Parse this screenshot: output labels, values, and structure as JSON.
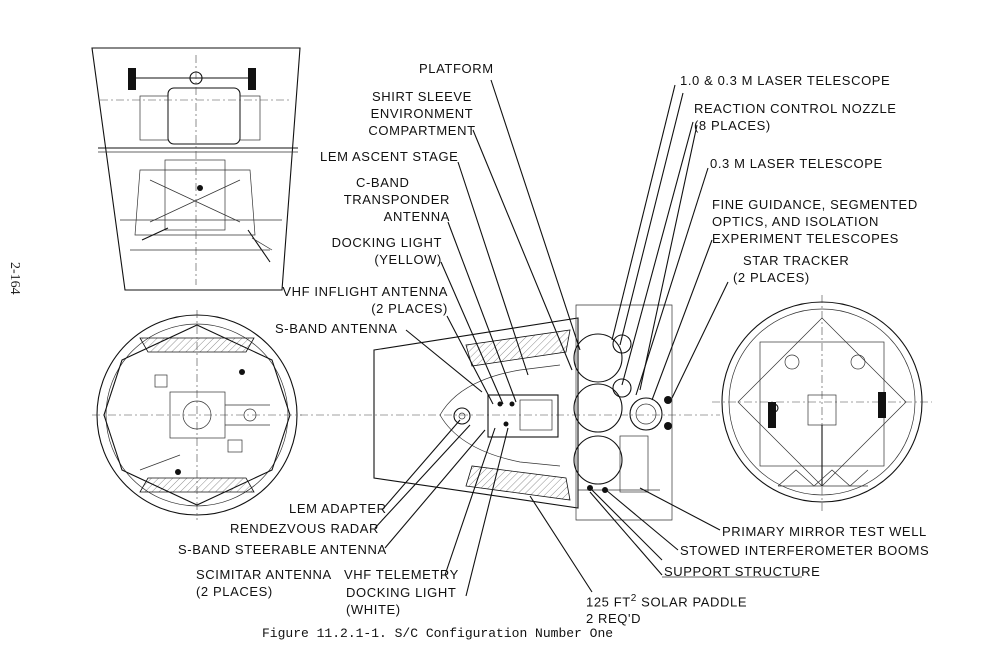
{
  "page_number": "2-164",
  "caption": "Figure 11.2.1-1.  S/C Configuration Number One",
  "labels": {
    "platform": "PLATFORM",
    "shirt_sleeve": [
      "SHIRT SLEEVE",
      "ENVIRONMENT",
      "COMPARTMENT"
    ],
    "lem_ascent_stage": "LEM ASCENT STAGE",
    "c_band": [
      "C-BAND",
      "TRANSPONDER",
      "ANTENNA"
    ],
    "docking_light_yellow": [
      "DOCKING LIGHT",
      "(YELLOW)"
    ],
    "vhf_inflight": [
      "VHF INFLIGHT ANTENNA",
      "(2 PLACES)"
    ],
    "s_band_antenna": "S-BAND ANTENNA",
    "laser_telescope_large": "1.0 & 0.3 M LASER TELESCOPE",
    "reaction_control": [
      "REACTION CONTROL NOZZLE",
      "(8 PLACES)"
    ],
    "laser_telescope_small": "0.3 M LASER TELESCOPE",
    "fine_guidance": [
      "FINE GUIDANCE, SEGMENTED",
      "OPTICS, AND ISOLATION",
      "EXPERIMENT TELESCOPES"
    ],
    "star_tracker": [
      "STAR TRACKER",
      "(2 PLACES)"
    ],
    "lem_adapter": "LEM ADAPTER",
    "rendezvous_radar": "RENDEZVOUS RADAR",
    "s_band_steerable": "S-BAND STEERABLE ANTENNA",
    "scimitar": [
      "SCIMITAR ANTENNA",
      "(2 PLACES)"
    ],
    "vhf_telemetry": "VHF TELEMETRY",
    "docking_light_white": [
      "DOCKING LIGHT",
      "(WHITE)"
    ],
    "solar_paddle_area": "125 FT",
    "solar_paddle_exp": "2",
    "solar_paddle_rest": " SOLAR PADDLE",
    "solar_paddle_req": "2 REQ'D",
    "primary_mirror": "PRIMARY MIRROR TEST WELL",
    "stowed_booms": "STOWED INTERFEROMETER BOOMS",
    "support_structure": "SUPPORT STRUCTURE"
  }
}
